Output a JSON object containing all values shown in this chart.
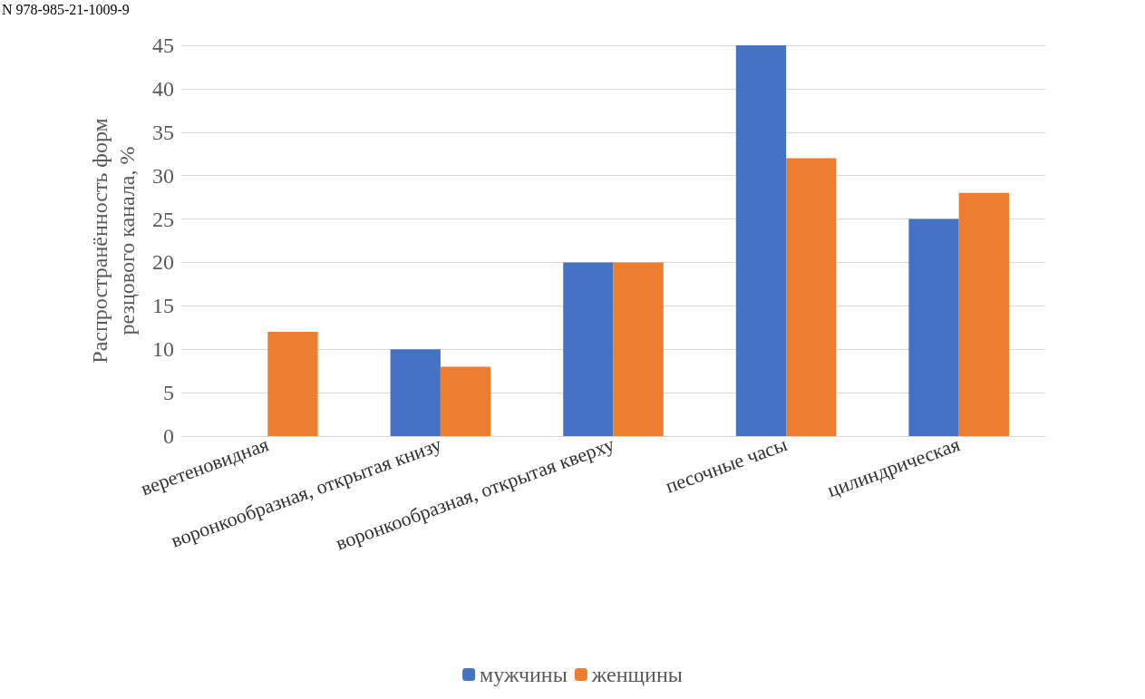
{
  "chart_data": {
    "type": "bar",
    "ylabel": "Распространённость форм\nрезцового канала, %",
    "categories": [
      "веретеновидная",
      "воронкообразная, открытая книзу",
      "воронкообразная, открытая кверху",
      "песочные часы",
      "цилиндрическая"
    ],
    "series": [
      {
        "name": "мужчины",
        "color": "#4472c4",
        "values": [
          0,
          10,
          20,
          45,
          25
        ]
      },
      {
        "name": "женщины",
        "color": "#ed7d31",
        "values": [
          12,
          8,
          20,
          32,
          28
        ]
      }
    ],
    "ylim": [
      0,
      45
    ],
    "yticks": [
      0,
      5,
      10,
      15,
      20,
      25,
      30,
      35,
      40,
      45
    ],
    "grid": "y",
    "legend": "bottom",
    "annotations": [
      "N 978-985-21-1009-9"
    ]
  }
}
